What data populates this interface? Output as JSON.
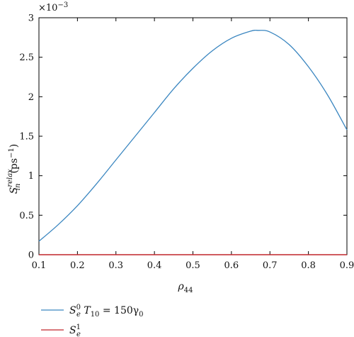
{
  "chart_data": {
    "type": "line",
    "title": "",
    "xlabel": {
      "base": "ρ",
      "sub": "44"
    },
    "ylabel": {
      "base": "S",
      "sup": "relax",
      "sub": "in",
      "unit": "(ps",
      "unit_sup": "−1",
      "unit_close": ")"
    },
    "y_multiplier": {
      "base": "×10",
      "sup": "−3"
    },
    "xlim": [
      0.1,
      0.9
    ],
    "ylim": [
      0,
      3
    ],
    "x_ticks": [
      0.1,
      0.2,
      0.3,
      0.4,
      0.5,
      0.6,
      0.7,
      0.8,
      0.9
    ],
    "y_ticks": [
      0,
      0.5,
      1,
      1.5,
      2,
      2.5,
      3
    ],
    "x_tick_labels": [
      "0.1",
      "0.2",
      "0.3",
      "0.4",
      "0.5",
      "0.6",
      "0.7",
      "0.8",
      "0.9"
    ],
    "y_tick_labels": [
      "0",
      "0.5",
      "1",
      "1.5",
      "2",
      "2.5",
      "3"
    ],
    "grid": false,
    "legend_position": "bottom-left",
    "series": [
      {
        "name": "S_e^0 T_10 = 150γ_0",
        "legend": {
          "base": "S",
          "sub": "e",
          "sup": "0",
          "rest": " T",
          "rest_sub": "10",
          "rest_tail": " = 150γ",
          "tail_sub": "0"
        },
        "color": "#3a86c0",
        "x": [
          0.1,
          0.15,
          0.2,
          0.25,
          0.3,
          0.35,
          0.4,
          0.45,
          0.5,
          0.55,
          0.6,
          0.65,
          0.67,
          0.7,
          0.75,
          0.8,
          0.85,
          0.9
        ],
        "y": [
          0.17,
          0.38,
          0.62,
          0.9,
          1.2,
          1.5,
          1.8,
          2.1,
          2.36,
          2.58,
          2.74,
          2.83,
          2.84,
          2.82,
          2.66,
          2.38,
          2.02,
          1.58
        ]
      },
      {
        "name": "S_e^1",
        "legend": {
          "base": "S",
          "sub": "e",
          "sup": "1"
        },
        "color": "#c0262c",
        "x": [
          0.1,
          0.9
        ],
        "y": [
          0,
          0
        ]
      }
    ]
  }
}
